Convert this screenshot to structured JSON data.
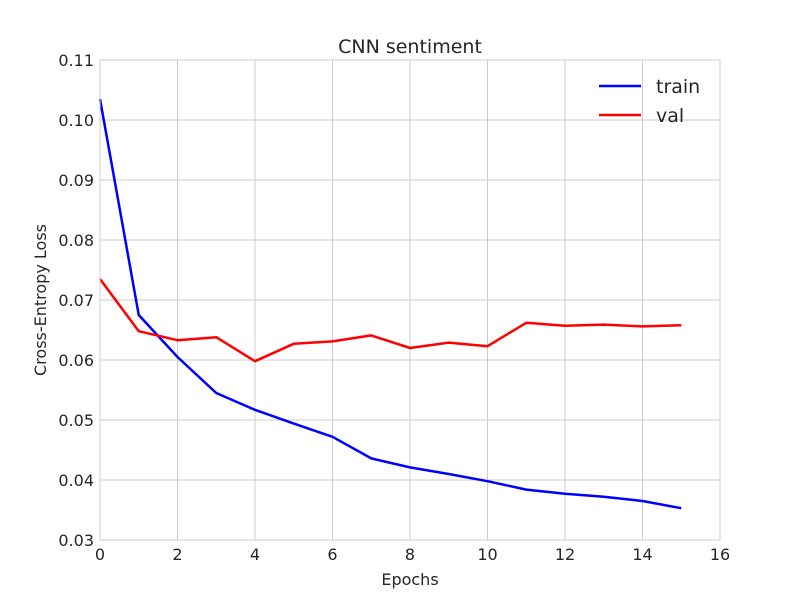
{
  "chart_data": {
    "type": "line",
    "title": "CNN sentiment",
    "xlabel": "Epochs",
    "ylabel": "Cross-Entropy Loss",
    "xlim": [
      0,
      16
    ],
    "ylim": [
      0.03,
      0.11
    ],
    "xticks": [
      0,
      2,
      4,
      6,
      8,
      10,
      12,
      14,
      16
    ],
    "xtick_labels": [
      "0",
      "2",
      "4",
      "6",
      "8",
      "10",
      "12",
      "14",
      "16"
    ],
    "yticks": [
      0.03,
      0.04,
      0.05,
      0.06,
      0.07,
      0.08,
      0.09,
      0.1,
      0.11
    ],
    "ytick_labels": [
      "0.03",
      "0.04",
      "0.05",
      "0.06",
      "0.07",
      "0.08",
      "0.09",
      "0.10",
      "0.11"
    ],
    "grid": true,
    "legend_position": "top-right",
    "x": [
      0,
      1,
      2,
      3,
      4,
      5,
      6,
      7,
      8,
      9,
      10,
      11,
      12,
      13,
      14,
      15
    ],
    "series": [
      {
        "name": "train",
        "color": "#0000ff",
        "values": [
          0.1035,
          0.0675,
          0.0605,
          0.0545,
          0.0517,
          0.0494,
          0.0472,
          0.0436,
          0.0421,
          0.041,
          0.0398,
          0.0384,
          0.0377,
          0.0372,
          0.0365,
          0.0353
        ]
      },
      {
        "name": "val",
        "color": "#ff0000",
        "values": [
          0.0735,
          0.0648,
          0.0633,
          0.0638,
          0.0598,
          0.0627,
          0.0631,
          0.0641,
          0.062,
          0.0629,
          0.0623,
          0.0662,
          0.0657,
          0.0659,
          0.0656,
          0.0658
        ]
      }
    ]
  }
}
